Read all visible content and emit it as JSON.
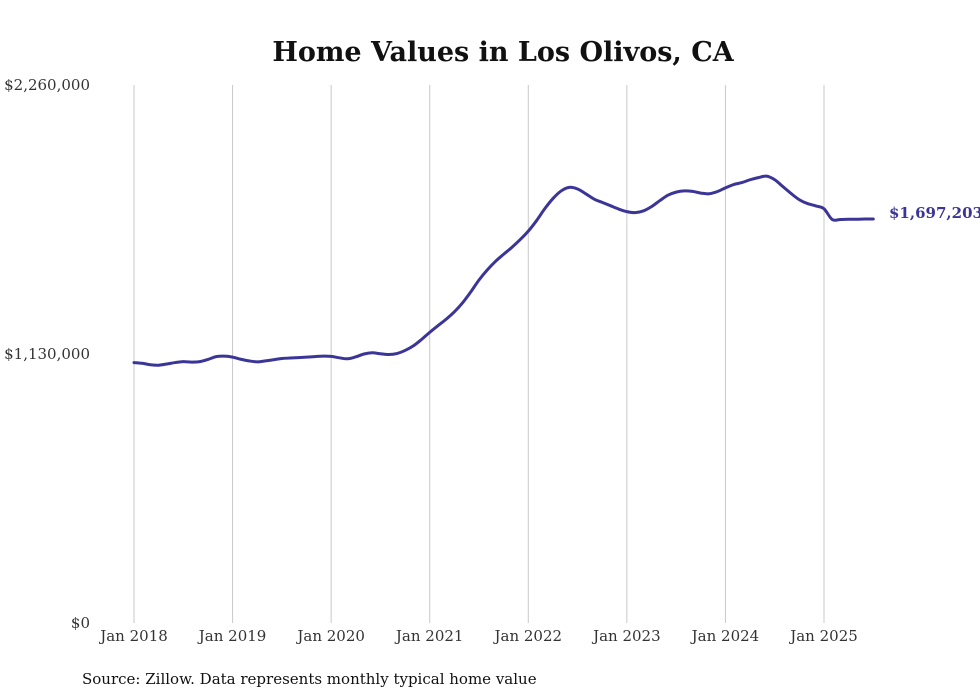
{
  "chart_data": {
    "type": "line",
    "title": "Home Values in Los Olivos, CA",
    "xlabel": "",
    "ylabel": "",
    "source": "Source: Zillow. Data represents monthly typical home value",
    "ylim": [
      0,
      2260000
    ],
    "yticks": [
      {
        "value": 0,
        "label": "$0"
      },
      {
        "value": 1130000,
        "label": "$1,130,000"
      },
      {
        "value": 2260000,
        "label": "$2,260,000"
      }
    ],
    "xticks": [
      {
        "date": "2018-01",
        "label": "Jan 2018"
      },
      {
        "date": "2019-01",
        "label": "Jan 2019"
      },
      {
        "date": "2020-01",
        "label": "Jan 2020"
      },
      {
        "date": "2021-01",
        "label": "Jan 2021"
      },
      {
        "date": "2022-01",
        "label": "Jan 2022"
      },
      {
        "date": "2023-01",
        "label": "Jan 2023"
      },
      {
        "date": "2024-01",
        "label": "Jan 2024"
      },
      {
        "date": "2025-01",
        "label": "Jan 2025"
      }
    ],
    "grid": "vertical",
    "end_label": "$1,697,203",
    "series": [
      {
        "color": "#3b3597",
        "x": [
          "2018-01",
          "2018-02",
          "2018-03",
          "2018-04",
          "2018-05",
          "2018-06",
          "2018-07",
          "2018-08",
          "2018-09",
          "2018-10",
          "2018-11",
          "2018-12",
          "2019-01",
          "2019-02",
          "2019-03",
          "2019-04",
          "2019-05",
          "2019-06",
          "2019-07",
          "2019-08",
          "2019-09",
          "2019-10",
          "2019-11",
          "2019-12",
          "2020-01",
          "2020-02",
          "2020-03",
          "2020-04",
          "2020-05",
          "2020-06",
          "2020-07",
          "2020-08",
          "2020-09",
          "2020-10",
          "2020-11",
          "2020-12",
          "2021-01",
          "2021-02",
          "2021-03",
          "2021-04",
          "2021-05",
          "2021-06",
          "2021-07",
          "2021-08",
          "2021-09",
          "2021-10",
          "2021-11",
          "2021-12",
          "2022-01",
          "2022-02",
          "2022-03",
          "2022-04",
          "2022-05",
          "2022-06",
          "2022-07",
          "2022-08",
          "2022-09",
          "2022-10",
          "2022-11",
          "2022-12",
          "2023-01",
          "2023-02",
          "2023-03",
          "2023-04",
          "2023-05",
          "2023-06",
          "2023-07",
          "2023-08",
          "2023-09",
          "2023-10",
          "2023-11",
          "2023-12",
          "2024-01",
          "2024-02",
          "2024-03",
          "2024-04",
          "2024-05",
          "2024-06",
          "2024-07",
          "2024-08",
          "2024-09",
          "2024-10",
          "2024-11",
          "2024-12",
          "2025-01",
          "2025-02",
          "2025-03",
          "2025-04",
          "2025-05",
          "2025-06",
          "2025-07"
        ],
        "values": [
          1094000,
          1091000,
          1085000,
          1083000,
          1088000,
          1094000,
          1098000,
          1096000,
          1098000,
          1107000,
          1119000,
          1121000,
          1117000,
          1108000,
          1101000,
          1097000,
          1101000,
          1106000,
          1111000,
          1113000,
          1115000,
          1117000,
          1119000,
          1121000,
          1120000,
          1114000,
          1110000,
          1118000,
          1130000,
          1135000,
          1131000,
          1128000,
          1132000,
          1145000,
          1164000,
          1191000,
          1221000,
          1249000,
          1276000,
          1307000,
          1345000,
          1391000,
          1441000,
          1483000,
          1519000,
          1549000,
          1578000,
          1610000,
          1646000,
          1690000,
          1740000,
          1783000,
          1815000,
          1830000,
          1823000,
          1803000,
          1781000,
          1767000,
          1753000,
          1739000,
          1728000,
          1724000,
          1731000,
          1749000,
          1774000,
          1797000,
          1810000,
          1815000,
          1813000,
          1806000,
          1803000,
          1812000,
          1828000,
          1842000,
          1850000,
          1862000,
          1871000,
          1877000,
          1862000,
          1833000,
          1804000,
          1778000,
          1762000,
          1752000,
          1740000,
          1695000,
          1695000,
          1696000,
          1696000,
          1697000,
          1697203
        ]
      }
    ]
  }
}
